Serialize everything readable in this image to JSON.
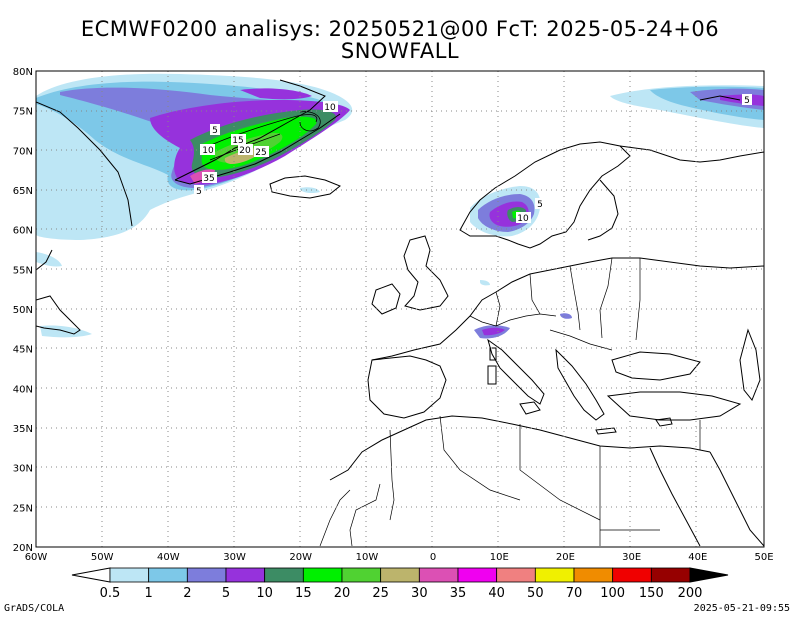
{
  "title_line1": "ECMWF0200 analisys: 20250521@00 FcT: 2025-05-24+06",
  "title_line2": "SNOWFALL",
  "lat_labels": [
    "80N",
    "75N",
    "70N",
    "65N",
    "60N",
    "55N",
    "50N",
    "45N",
    "40N",
    "35N",
    "30N",
    "25N",
    "20N"
  ],
  "lon_labels": [
    "60W",
    "50W",
    "40W",
    "30W",
    "20W",
    "10W",
    "0",
    "10E",
    "20E",
    "30E",
    "40E",
    "50E"
  ],
  "colorbar": {
    "labels": [
      "0.5",
      "1",
      "2",
      "5",
      "10",
      "15",
      "20",
      "25",
      "30",
      "35",
      "40",
      "50",
      "70",
      "100",
      "150",
      "200"
    ],
    "colors": [
      "#bde6f5",
      "#7dc8e8",
      "#7d7ddc",
      "#9632dc",
      "#3c8c64",
      "#00f000",
      "#50d232",
      "#bcb46c",
      "#dc50b4",
      "#f000f0",
      "#f08080",
      "#f0f000",
      "#f08c00",
      "#f00000",
      "#960000"
    ]
  },
  "contour_labels": [
    "5",
    "10",
    "15",
    "20",
    "25",
    "35",
    "5",
    "5",
    "5",
    "10",
    "5"
  ],
  "footer_left": "GrADS/COLA",
  "footer_right": "2025-05-21-09:55"
}
